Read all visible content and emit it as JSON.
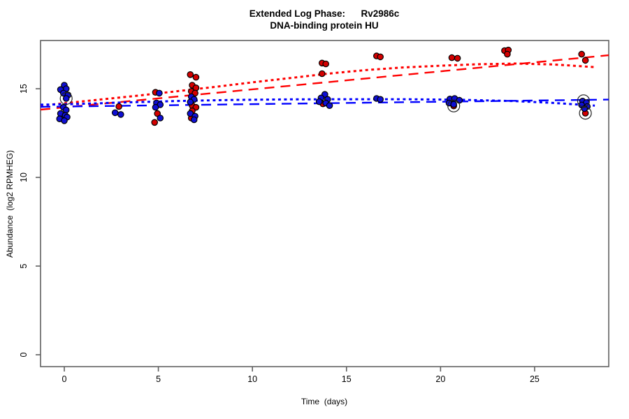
{
  "title": {
    "line1": "Extended Log Phase:      Rv2986c",
    "line2": "DNA-binding protein HU"
  },
  "axes": {
    "x": {
      "label": "Time  (days)",
      "ticks": [
        0,
        5,
        10,
        15,
        20,
        25
      ],
      "range": [
        -1.263,
        28.94
      ]
    },
    "y": {
      "label": "Abundance  (log2 RPMHEG)",
      "ticks": [
        0,
        5,
        10,
        15
      ],
      "range": [
        -0.67,
        17.72
      ]
    }
  },
  "colors": {
    "red_point": "#d40000",
    "blue_point": "#0f0fd4",
    "red_line": "#ff0000",
    "blue_line": "#0000ff",
    "point_edge": "#000000",
    "box": "#606060",
    "outlier_ring": "#222222"
  },
  "chart_data": {
    "type": "scatter",
    "title": "Extended Log Phase: Rv2986c — DNA-binding protein HU",
    "xlabel": "Time (days)",
    "ylabel": "Abundance (log2 RPMHEG)",
    "xlim": [
      -1.263,
      28.94
    ],
    "ylim": [
      -0.67,
      17.72
    ],
    "grid": false,
    "legend": "none",
    "series": [
      {
        "name": "red-points",
        "color": "#d40000",
        "points": [
          [
            2.9,
            14.0
          ],
          [
            4.85,
            14.8
          ],
          [
            4.95,
            13.6
          ],
          [
            4.8,
            13.1
          ],
          [
            6.7,
            15.8
          ],
          [
            7.0,
            15.65
          ],
          [
            6.8,
            15.2
          ],
          [
            7.0,
            15.05
          ],
          [
            6.75,
            14.85
          ],
          [
            6.95,
            14.75
          ],
          [
            6.8,
            14.05
          ],
          [
            7.0,
            13.95
          ],
          [
            6.8,
            13.75
          ],
          [
            6.75,
            13.35
          ],
          [
            13.7,
            16.45
          ],
          [
            13.9,
            16.4
          ],
          [
            13.7,
            15.85
          ],
          [
            13.75,
            14.15
          ],
          [
            16.6,
            16.85
          ],
          [
            16.8,
            16.8
          ],
          [
            20.6,
            16.75
          ],
          [
            20.9,
            16.72
          ],
          [
            20.7,
            14.03
          ],
          [
            23.4,
            17.15
          ],
          [
            23.6,
            17.18
          ],
          [
            23.55,
            16.95
          ],
          [
            27.5,
            16.95
          ],
          [
            27.7,
            16.6
          ],
          [
            27.7,
            13.62
          ]
        ]
      },
      {
        "name": "blue-points",
        "color": "#0f0fd4",
        "points": [
          [
            0.0,
            15.2
          ],
          [
            0.1,
            15.0
          ],
          [
            -0.2,
            14.95
          ],
          [
            -0.05,
            14.75
          ],
          [
            0.2,
            14.65
          ],
          [
            0.1,
            14.45
          ],
          [
            -0.05,
            13.95
          ],
          [
            0.1,
            13.8
          ],
          [
            -0.2,
            13.6
          ],
          [
            0.05,
            13.5
          ],
          [
            0.15,
            13.4
          ],
          [
            -0.25,
            13.3
          ],
          [
            0.0,
            13.2
          ],
          [
            2.7,
            13.65
          ],
          [
            3.0,
            13.55
          ],
          [
            5.05,
            14.75
          ],
          [
            4.9,
            14.2
          ],
          [
            5.1,
            14.1
          ],
          [
            4.85,
            13.95
          ],
          [
            5.1,
            13.35
          ],
          [
            6.75,
            14.55
          ],
          [
            6.9,
            14.4
          ],
          [
            6.7,
            14.25
          ],
          [
            6.7,
            13.6
          ],
          [
            6.95,
            13.45
          ],
          [
            6.9,
            13.25
          ],
          [
            13.85,
            14.68
          ],
          [
            13.65,
            14.48
          ],
          [
            14.0,
            14.4
          ],
          [
            13.55,
            14.27
          ],
          [
            13.9,
            14.19
          ],
          [
            14.1,
            14.05
          ],
          [
            16.6,
            14.45
          ],
          [
            16.8,
            14.4
          ],
          [
            20.5,
            14.42
          ],
          [
            20.75,
            14.45
          ],
          [
            21.0,
            14.35
          ],
          [
            20.45,
            14.19
          ],
          [
            20.7,
            14.12
          ],
          [
            27.55,
            14.3
          ],
          [
            27.75,
            14.22
          ],
          [
            27.5,
            14.08
          ],
          [
            27.8,
            14.0
          ],
          [
            27.65,
            13.88
          ]
        ]
      }
    ],
    "fit_lines": [
      {
        "name": "red-linear-fit",
        "color": "#ff0000",
        "dash": "14,9",
        "width": 2.4,
        "points": [
          [
            -1.263,
            13.82
          ],
          [
            28.94,
            16.89
          ]
        ]
      },
      {
        "name": "red-loess-fit",
        "color": "#ff0000",
        "dash": "4,4.5",
        "width": 3,
        "points": [
          [
            -1.263,
            14.05
          ],
          [
            0,
            14.18
          ],
          [
            2,
            14.4
          ],
          [
            4,
            14.62
          ],
          [
            6,
            14.86
          ],
          [
            8,
            15.1
          ],
          [
            10,
            15.36
          ],
          [
            12,
            15.6
          ],
          [
            14,
            15.85
          ],
          [
            16,
            16.05
          ],
          [
            18,
            16.2
          ],
          [
            20,
            16.3
          ],
          [
            22,
            16.38
          ],
          [
            24,
            16.42
          ],
          [
            26,
            16.37
          ],
          [
            28.2,
            16.22
          ]
        ]
      },
      {
        "name": "blue-linear-fit",
        "color": "#0000ff",
        "dash": "14,9",
        "width": 2.4,
        "points": [
          [
            -1.263,
            13.98
          ],
          [
            28.94,
            14.39
          ]
        ]
      },
      {
        "name": "blue-loess-fit",
        "color": "#0000ff",
        "dash": "4,4.5",
        "width": 3,
        "points": [
          [
            -1.263,
            14.1
          ],
          [
            0,
            14.12
          ],
          [
            3,
            14.22
          ],
          [
            6,
            14.31
          ],
          [
            9,
            14.37
          ],
          [
            12,
            14.4
          ],
          [
            15,
            14.41
          ],
          [
            18,
            14.41
          ],
          [
            21,
            14.38
          ],
          [
            24,
            14.3
          ],
          [
            26,
            14.2
          ],
          [
            28.2,
            14.05
          ]
        ]
      }
    ],
    "outlier_circles": [
      [
        0.1,
        14.45
      ],
      [
        20.7,
        14.03
      ],
      [
        27.6,
        14.32
      ],
      [
        27.7,
        13.62
      ]
    ]
  }
}
